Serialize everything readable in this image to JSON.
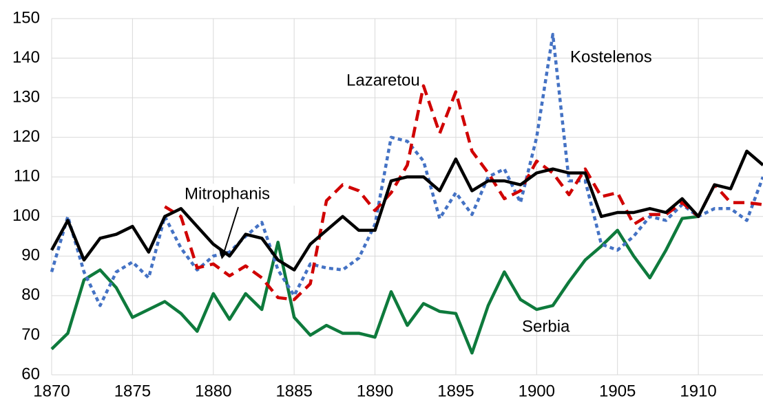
{
  "chart_data": {
    "type": "line",
    "x": [
      1870,
      1871,
      1872,
      1873,
      1874,
      1875,
      1876,
      1877,
      1878,
      1879,
      1880,
      1881,
      1882,
      1883,
      1884,
      1885,
      1886,
      1887,
      1888,
      1889,
      1890,
      1891,
      1892,
      1893,
      1894,
      1895,
      1896,
      1897,
      1898,
      1899,
      1900,
      1901,
      1902,
      1903,
      1904,
      1905,
      1906,
      1907,
      1908,
      1909,
      1910,
      1911,
      1912,
      1913,
      1914
    ],
    "xlim": [
      1870,
      1914
    ],
    "xticks": [
      1870,
      1875,
      1880,
      1885,
      1890,
      1895,
      1900,
      1905,
      1910
    ],
    "ylim": [
      60,
      150
    ],
    "yticks": [
      60,
      70,
      80,
      90,
      100,
      110,
      120,
      130,
      140,
      150
    ],
    "grid": true,
    "series": [
      {
        "name": "Serbia",
        "color": "#0e7a3c",
        "style": "solid",
        "values": [
          66.5,
          70.5,
          84,
          86.5,
          82,
          74.5,
          76.5,
          78.5,
          75.5,
          71,
          80.5,
          74,
          80.5,
          76.5,
          93.5,
          74.5,
          70,
          72.5,
          70.5,
          70.5,
          69.5,
          81,
          72.5,
          78,
          76,
          75.5,
          65.5,
          77.5,
          86,
          79,
          76.5,
          77.5,
          83.5,
          89,
          92.5,
          96.5,
          90,
          84.5,
          91.5,
          99.5,
          100,
          null,
          null,
          null,
          null
        ]
      },
      {
        "name": "Kostelenos",
        "color": "#4472c4",
        "style": "dotted",
        "values": [
          86,
          100,
          86,
          77.5,
          86,
          88.5,
          84.5,
          100,
          92,
          86.5,
          90,
          91,
          95,
          98.5,
          86.5,
          80,
          88,
          87,
          86.5,
          89.5,
          98,
          120,
          119,
          114,
          99.5,
          106,
          100.5,
          110,
          112,
          103.5,
          120,
          146,
          109,
          109,
          93,
          91.5,
          95,
          100,
          99,
          103,
          100,
          102,
          102,
          99,
          110
        ]
      },
      {
        "name": "Lazaretou",
        "color": "#d00000",
        "style": "dashed",
        "values": [
          null,
          null,
          null,
          null,
          null,
          null,
          null,
          102.5,
          100,
          87,
          88,
          85,
          87.5,
          84.5,
          79.5,
          79,
          83,
          104,
          108,
          106.5,
          101.5,
          106,
          113,
          133,
          121,
          131.5,
          116.5,
          111,
          104.5,
          106.5,
          114,
          111,
          105.5,
          112,
          105,
          106,
          98,
          100.5,
          100.5,
          103.5,
          100,
          108,
          103.5,
          103.5,
          103
        ]
      },
      {
        "name": "Mitrophanis",
        "color": "#000000",
        "style": "solid",
        "values": [
          91.5,
          99,
          89,
          94.5,
          95.5,
          97.5,
          91,
          100,
          102,
          97.5,
          93,
          90,
          95.5,
          94.5,
          89,
          86.5,
          93,
          96.5,
          100,
          96.5,
          96.5,
          109,
          110,
          110,
          106.5,
          114.5,
          106.5,
          109,
          109,
          108,
          111,
          112,
          111,
          111,
          100,
          101,
          101,
          102,
          101,
          104.5,
          100,
          108,
          107,
          116.5,
          113
        ]
      }
    ]
  }
}
